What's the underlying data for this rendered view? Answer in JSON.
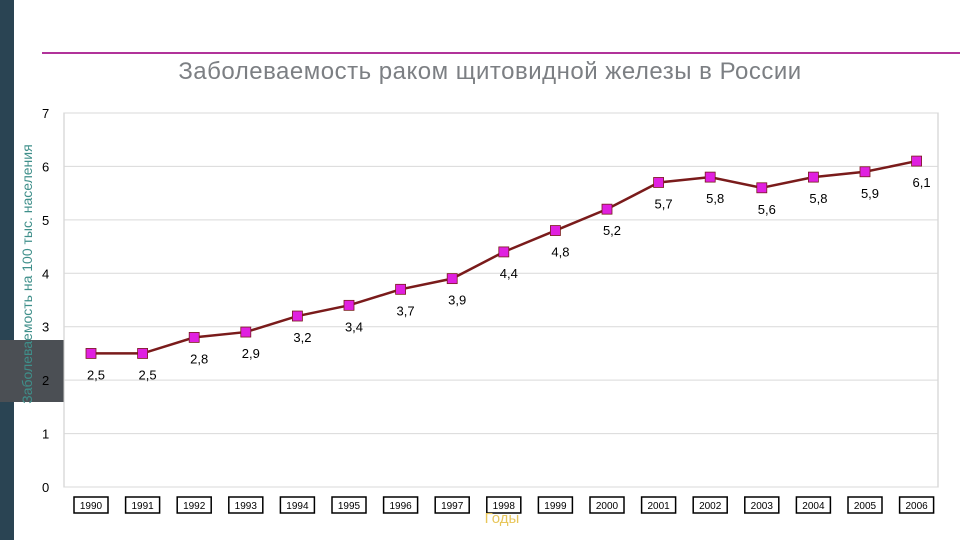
{
  "slide": {
    "title": "Заболеваемость раком щитовидной железы в России",
    "colors": {
      "accent_rule": "#b1339a",
      "side_bar": "#2a4453",
      "line": "#7a1b1b",
      "marker": "#e020e0"
    }
  },
  "chart_data": {
    "type": "line",
    "title": "Заболеваемость раком щитовидной железы в России",
    "xlabel": "Годы",
    "ylabel": "Заболеваемость на 100 тыс. населения",
    "categories": [
      "1990",
      "1991",
      "1992",
      "1993",
      "1994",
      "1995",
      "1996",
      "1997",
      "1998",
      "1999",
      "2000",
      "2001",
      "2002",
      "2003",
      "2004",
      "2005",
      "2006"
    ],
    "series": [
      {
        "values": [
          2.5,
          2.5,
          2.8,
          2.9,
          3.2,
          3.4,
          3.7,
          3.9,
          4.4,
          4.8,
          5.2,
          5.7,
          5.8,
          5.6,
          5.8,
          5.9,
          6.1
        ]
      }
    ],
    "data_labels": [
      "2,5",
      "2,5",
      "2,8",
      "2,9",
      "3,2",
      "3,4",
      "3,7",
      "3,9",
      "4,4",
      "4,8",
      "5,2",
      "5,7",
      "5,8",
      "5,6",
      "5,8",
      "5,9",
      "6,1"
    ],
    "ytick_labels": [
      "0",
      "1",
      "2",
      "3",
      "4",
      "5",
      "6",
      "7"
    ],
    "ylim": [
      0,
      7
    ],
    "grid": true,
    "legend": "none"
  }
}
